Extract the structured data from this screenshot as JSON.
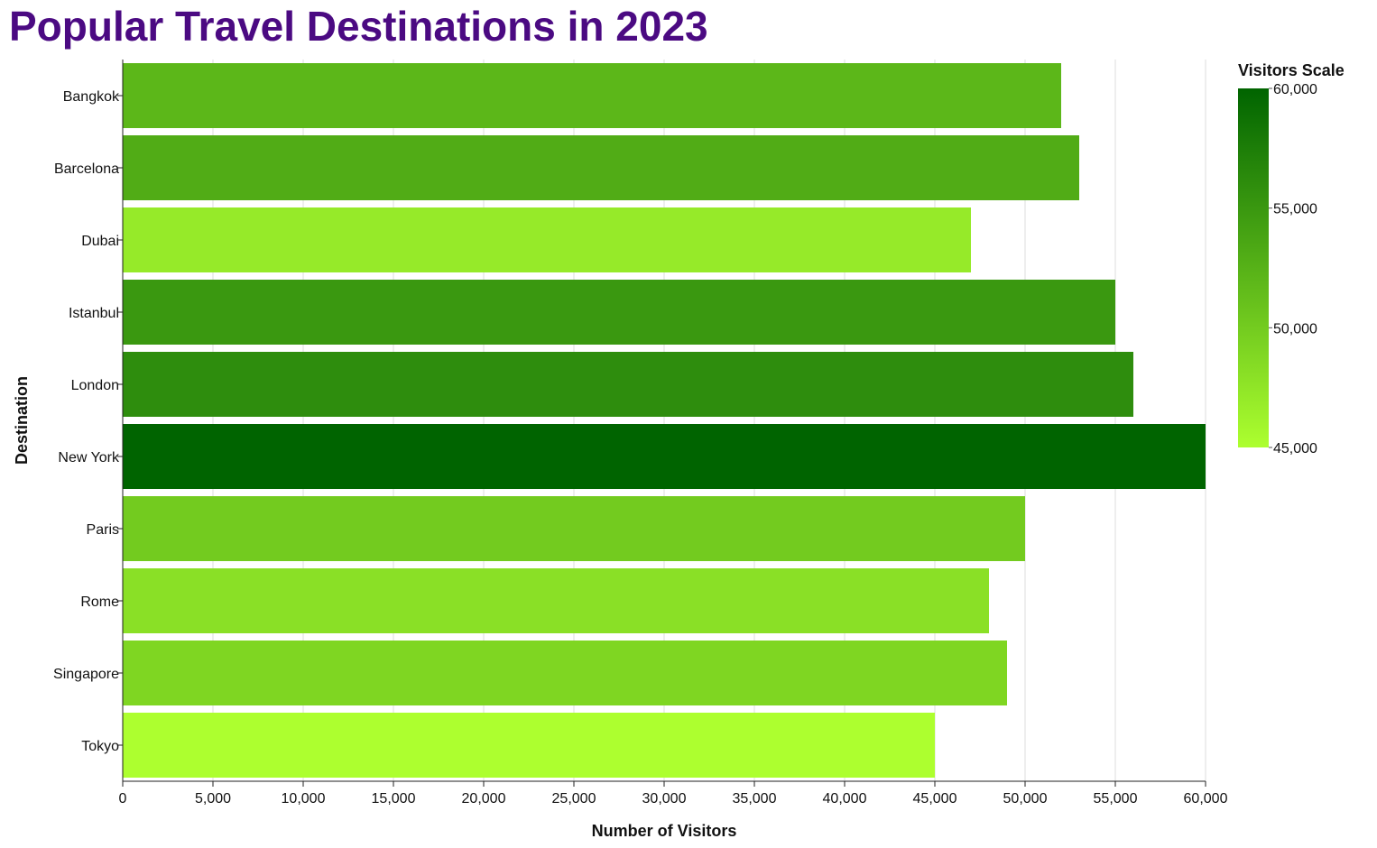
{
  "chart_data": {
    "type": "bar",
    "orientation": "horizontal",
    "title": "Popular Travel Destinations in 2023",
    "xlabel": "Number of Visitors",
    "ylabel": "Destination",
    "xlim": [
      0,
      60000
    ],
    "x_ticks": [
      "0",
      "5,000",
      "10,000",
      "15,000",
      "20,000",
      "25,000",
      "30,000",
      "35,000",
      "40,000",
      "45,000",
      "50,000",
      "55,000",
      "60,000"
    ],
    "categories": [
      "Bangkok",
      "Barcelona",
      "Dubai",
      "Istanbul",
      "London",
      "New York",
      "Paris",
      "Rome",
      "Singapore",
      "Tokyo"
    ],
    "values": [
      52000,
      53000,
      47000,
      55000,
      56000,
      60000,
      50000,
      48000,
      49000,
      45000
    ],
    "grid": true,
    "legend": {
      "title": "Visitors Scale",
      "position": "top-right",
      "domain": [
        45000,
        60000
      ],
      "ticks": [
        "60,000",
        "55,000",
        "50,000",
        "45,000"
      ],
      "colors": [
        "#adff2f",
        "#006400"
      ]
    }
  }
}
